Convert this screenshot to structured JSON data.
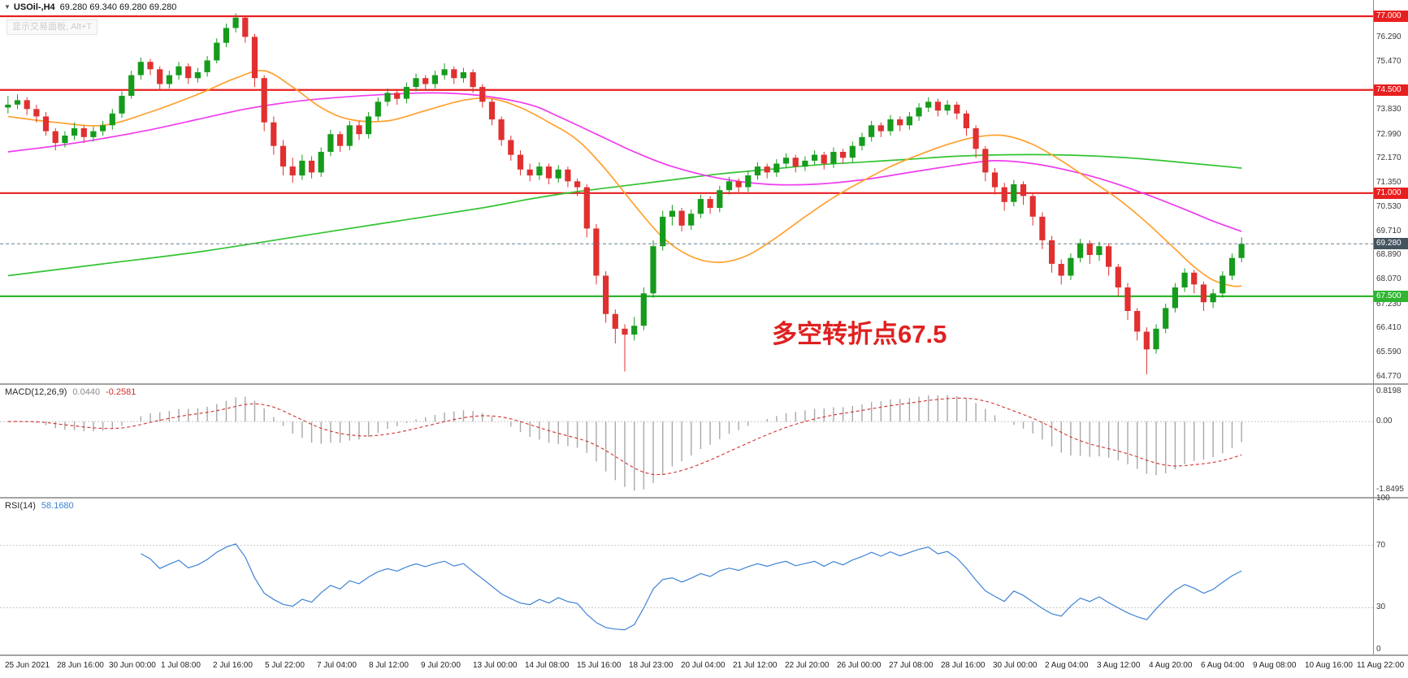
{
  "header": {
    "symbol_dropdown_icon": "▼",
    "title": "USOil-,H4",
    "ohlc": "69.280 69.340 69.280 69.280",
    "trade_panel_hint": "显示交易面板, Alt+T"
  },
  "colors": {
    "up": "#169b1d",
    "down": "#e03030",
    "macd_hist": "#a8a8a8",
    "macd_signal": "#d23030",
    "rsi_line": "#3e83d6",
    "current_price_line": "#6b7f8a",
    "annotation": "#e02020",
    "level_dotted": "#c8c8c8"
  },
  "chart_data": {
    "type": "candlestick",
    "symbol": "USOil-",
    "timeframe": "H4",
    "ohlc_display": {
      "open": "69.280",
      "high": "69.340",
      "low": "69.280",
      "close": "69.280"
    },
    "price_axis": {
      "min": 64.55,
      "max": 77.55,
      "plain_labels": [
        "76.290",
        "75.470",
        "73.830",
        "72.990",
        "72.170",
        "71.350",
        "70.530",
        "69.710",
        "68.890",
        "68.070",
        "67.230",
        "66.410",
        "65.590",
        "64.770"
      ]
    },
    "special_price_labels": [
      {
        "text": "77.000",
        "value": 77.0,
        "bg": "#e81f1f"
      },
      {
        "text": "74.500",
        "value": 74.5,
        "bg": "#e81f1f"
      },
      {
        "text": "71.000",
        "value": 71.0,
        "bg": "#e81f1f"
      },
      {
        "text": "69.280",
        "value": 69.28,
        "bg": "#43545f"
      },
      {
        "text": "67.500",
        "value": 67.5,
        "bg": "#2fb52f"
      }
    ],
    "hlines": [
      {
        "label": "77.000",
        "value": 77.0,
        "color": "#e81f1f"
      },
      {
        "label": "74.500",
        "value": 74.5,
        "color": "#e81f1f"
      },
      {
        "label": "71.000",
        "value": 71.0,
        "color": "#e81f1f"
      },
      {
        "label": "67.500",
        "value": 67.5,
        "color": "#2fb52f"
      }
    ],
    "current_price": {
      "value": 69.28,
      "label": "69.280"
    },
    "annotation": {
      "text": "多空转折点67.5"
    },
    "moving_averages": [
      {
        "name": "ma-slow-green",
        "color": "#33c433",
        "points": [
          [
            0,
            68.2
          ],
          [
            10,
            68.6
          ],
          [
            20,
            69.0
          ],
          [
            30,
            69.5
          ],
          [
            40,
            70.0
          ],
          [
            50,
            70.5
          ],
          [
            55,
            70.8
          ],
          [
            60,
            71.05
          ],
          [
            65,
            71.25
          ],
          [
            70,
            71.45
          ],
          [
            75,
            71.65
          ],
          [
            80,
            71.8
          ],
          [
            85,
            71.95
          ],
          [
            90,
            72.05
          ],
          [
            95,
            72.15
          ],
          [
            100,
            72.25
          ],
          [
            105,
            72.3
          ],
          [
            110,
            72.3
          ],
          [
            115,
            72.25
          ],
          [
            120,
            72.15
          ],
          [
            125,
            72.0
          ],
          [
            130,
            71.85
          ]
        ]
      },
      {
        "name": "ma-medium-magenta",
        "color": "#ef3cef",
        "points": [
          [
            0,
            72.4
          ],
          [
            5,
            72.6
          ],
          [
            10,
            72.85
          ],
          [
            15,
            73.15
          ],
          [
            20,
            73.5
          ],
          [
            25,
            73.85
          ],
          [
            30,
            74.1
          ],
          [
            35,
            74.25
          ],
          [
            40,
            74.35
          ],
          [
            45,
            74.4
          ],
          [
            50,
            74.3
          ],
          [
            55,
            74.0
          ],
          [
            58,
            73.6
          ],
          [
            62,
            73.0
          ],
          [
            66,
            72.4
          ],
          [
            70,
            71.9
          ],
          [
            75,
            71.5
          ],
          [
            80,
            71.3
          ],
          [
            85,
            71.3
          ],
          [
            90,
            71.45
          ],
          [
            95,
            71.7
          ],
          [
            100,
            71.95
          ],
          [
            104,
            72.1
          ],
          [
            108,
            72.0
          ],
          [
            112,
            71.75
          ],
          [
            116,
            71.4
          ],
          [
            120,
            70.95
          ],
          [
            124,
            70.45
          ],
          [
            127,
            70.05
          ],
          [
            130,
            69.7
          ]
        ]
      },
      {
        "name": "ma-fast-orange",
        "color": "#ffa02e",
        "points": [
          [
            0,
            73.6
          ],
          [
            5,
            73.4
          ],
          [
            10,
            73.3
          ],
          [
            15,
            73.75
          ],
          [
            20,
            74.35
          ],
          [
            24,
            74.9
          ],
          [
            27,
            75.15
          ],
          [
            30,
            74.6
          ],
          [
            33,
            73.9
          ],
          [
            36,
            73.5
          ],
          [
            40,
            73.45
          ],
          [
            44,
            73.8
          ],
          [
            48,
            74.15
          ],
          [
            51,
            74.2
          ],
          [
            54,
            73.9
          ],
          [
            57,
            73.4
          ],
          [
            60,
            72.8
          ],
          [
            63,
            71.8
          ],
          [
            66,
            70.6
          ],
          [
            69,
            69.5
          ],
          [
            72,
            68.85
          ],
          [
            75,
            68.65
          ],
          [
            78,
            68.9
          ],
          [
            81,
            69.5
          ],
          [
            84,
            70.2
          ],
          [
            87,
            70.85
          ],
          [
            90,
            71.4
          ],
          [
            93,
            71.9
          ],
          [
            96,
            72.3
          ],
          [
            99,
            72.65
          ],
          [
            102,
            72.9
          ],
          [
            105,
            72.95
          ],
          [
            108,
            72.65
          ],
          [
            111,
            72.1
          ],
          [
            114,
            71.45
          ],
          [
            117,
            70.8
          ],
          [
            120,
            70.0
          ],
          [
            123,
            69.1
          ],
          [
            125,
            68.5
          ],
          [
            127,
            68.05
          ],
          [
            129,
            67.85
          ],
          [
            130,
            67.85
          ]
        ]
      }
    ],
    "candles": [
      [
        73.9,
        74.3,
        73.7,
        74.0
      ],
      [
        74.0,
        74.35,
        73.85,
        74.15
      ],
      [
        74.15,
        74.25,
        73.65,
        73.85
      ],
      [
        73.85,
        74.0,
        73.4,
        73.6
      ],
      [
        73.6,
        73.75,
        72.95,
        73.1
      ],
      [
        73.1,
        73.2,
        72.45,
        72.7
      ],
      [
        72.7,
        73.1,
        72.55,
        72.95
      ],
      [
        72.95,
        73.4,
        72.8,
        73.2
      ],
      [
        73.2,
        73.3,
        72.7,
        72.9
      ],
      [
        72.9,
        73.25,
        72.75,
        73.1
      ],
      [
        73.1,
        73.45,
        72.95,
        73.3
      ],
      [
        73.3,
        73.85,
        73.15,
        73.7
      ],
      [
        73.7,
        74.45,
        73.55,
        74.3
      ],
      [
        74.3,
        75.15,
        74.2,
        75.0
      ],
      [
        75.0,
        75.6,
        74.85,
        75.45
      ],
      [
        75.45,
        75.55,
        75.0,
        75.2
      ],
      [
        75.2,
        75.3,
        74.5,
        74.7
      ],
      [
        74.7,
        75.15,
        74.55,
        75.0
      ],
      [
        75.0,
        75.45,
        74.85,
        75.3
      ],
      [
        75.3,
        75.4,
        74.7,
        74.9
      ],
      [
        74.9,
        75.25,
        74.75,
        75.1
      ],
      [
        75.1,
        75.65,
        74.95,
        75.5
      ],
      [
        75.5,
        76.25,
        75.4,
        76.1
      ],
      [
        76.1,
        76.75,
        75.95,
        76.6
      ],
      [
        76.6,
        77.1,
        76.45,
        76.95
      ],
      [
        76.95,
        77.0,
        76.1,
        76.3
      ],
      [
        76.3,
        76.4,
        74.6,
        74.9
      ],
      [
        74.9,
        75.0,
        73.1,
        73.4
      ],
      [
        73.4,
        73.6,
        72.3,
        72.6
      ],
      [
        72.6,
        72.8,
        71.6,
        71.9
      ],
      [
        71.9,
        72.2,
        71.35,
        71.6
      ],
      [
        71.6,
        72.3,
        71.45,
        72.1
      ],
      [
        72.1,
        72.25,
        71.5,
        71.7
      ],
      [
        71.7,
        72.55,
        71.55,
        72.4
      ],
      [
        72.4,
        73.15,
        72.25,
        73.0
      ],
      [
        73.0,
        73.1,
        72.4,
        72.6
      ],
      [
        72.6,
        73.45,
        72.45,
        73.3
      ],
      [
        73.3,
        73.45,
        72.8,
        73.0
      ],
      [
        73.0,
        73.75,
        72.85,
        73.6
      ],
      [
        73.6,
        74.25,
        73.45,
        74.1
      ],
      [
        74.1,
        74.55,
        73.95,
        74.4
      ],
      [
        74.4,
        74.5,
        74.0,
        74.2
      ],
      [
        74.2,
        74.75,
        74.05,
        74.6
      ],
      [
        74.6,
        75.05,
        74.45,
        74.9
      ],
      [
        74.9,
        75.0,
        74.5,
        74.7
      ],
      [
        74.7,
        75.15,
        74.55,
        75.0
      ],
      [
        75.0,
        75.4,
        74.85,
        75.2
      ],
      [
        75.2,
        75.3,
        74.7,
        74.9
      ],
      [
        74.9,
        75.25,
        74.75,
        75.1
      ],
      [
        75.1,
        75.2,
        74.4,
        74.6
      ],
      [
        74.6,
        74.7,
        73.9,
        74.1
      ],
      [
        74.1,
        74.2,
        73.3,
        73.5
      ],
      [
        73.5,
        73.6,
        72.6,
        72.8
      ],
      [
        72.8,
        72.95,
        72.1,
        72.3
      ],
      [
        72.3,
        72.45,
        71.6,
        71.8
      ],
      [
        71.8,
        72.0,
        71.4,
        71.6
      ],
      [
        71.6,
        72.05,
        71.45,
        71.9
      ],
      [
        71.9,
        72.0,
        71.3,
        71.5
      ],
      [
        71.5,
        71.95,
        71.35,
        71.8
      ],
      [
        71.8,
        71.9,
        71.2,
        71.4
      ],
      [
        71.4,
        71.5,
        70.9,
        71.2
      ],
      [
        71.2,
        71.3,
        69.5,
        69.8
      ],
      [
        69.8,
        69.95,
        67.9,
        68.2
      ],
      [
        68.2,
        68.35,
        66.6,
        66.9
      ],
      [
        66.9,
        67.05,
        65.9,
        66.4
      ],
      [
        66.4,
        66.55,
        64.95,
        66.2
      ],
      [
        66.2,
        66.8,
        66.0,
        66.5
      ],
      [
        66.5,
        67.8,
        66.35,
        67.6
      ],
      [
        67.6,
        69.4,
        67.45,
        69.2
      ],
      [
        69.2,
        70.4,
        69.05,
        70.2
      ],
      [
        70.2,
        70.6,
        69.9,
        70.4
      ],
      [
        70.4,
        70.5,
        69.7,
        69.9
      ],
      [
        69.9,
        70.45,
        69.75,
        70.3
      ],
      [
        70.3,
        70.95,
        70.15,
        70.8
      ],
      [
        70.8,
        70.9,
        70.3,
        70.5
      ],
      [
        70.5,
        71.25,
        70.35,
        71.1
      ],
      [
        71.1,
        71.55,
        70.95,
        71.4
      ],
      [
        71.4,
        71.5,
        71.0,
        71.2
      ],
      [
        71.2,
        71.75,
        71.05,
        71.6
      ],
      [
        71.6,
        72.05,
        71.45,
        71.9
      ],
      [
        71.9,
        72.0,
        71.5,
        71.7
      ],
      [
        71.7,
        72.15,
        71.55,
        72.0
      ],
      [
        72.0,
        72.35,
        71.85,
        72.2
      ],
      [
        72.2,
        72.3,
        71.7,
        71.9
      ],
      [
        71.9,
        72.25,
        71.75,
        72.1
      ],
      [
        72.1,
        72.45,
        71.95,
        72.3
      ],
      [
        72.3,
        72.4,
        71.8,
        72.0
      ],
      [
        72.0,
        72.55,
        71.85,
        72.4
      ],
      [
        72.4,
        72.5,
        72.0,
        72.2
      ],
      [
        72.2,
        72.75,
        72.05,
        72.6
      ],
      [
        72.6,
        73.05,
        72.45,
        72.9
      ],
      [
        72.9,
        73.45,
        72.75,
        73.3
      ],
      [
        73.3,
        73.4,
        72.9,
        73.1
      ],
      [
        73.1,
        73.65,
        72.95,
        73.5
      ],
      [
        73.5,
        73.6,
        73.1,
        73.3
      ],
      [
        73.3,
        73.75,
        73.15,
        73.6
      ],
      [
        73.6,
        74.05,
        73.45,
        73.9
      ],
      [
        73.9,
        74.25,
        73.75,
        74.1
      ],
      [
        74.1,
        74.2,
        73.6,
        73.8
      ],
      [
        73.8,
        74.15,
        73.65,
        74.0
      ],
      [
        74.0,
        74.1,
        73.5,
        73.7
      ],
      [
        73.7,
        73.8,
        72.95,
        73.2
      ],
      [
        73.2,
        73.3,
        72.2,
        72.5
      ],
      [
        72.5,
        72.6,
        71.4,
        71.7
      ],
      [
        71.7,
        71.85,
        70.95,
        71.2
      ],
      [
        71.2,
        71.35,
        70.4,
        70.7
      ],
      [
        70.7,
        71.45,
        70.55,
        71.3
      ],
      [
        71.3,
        71.4,
        70.6,
        70.9
      ],
      [
        70.9,
        71.0,
        69.9,
        70.2
      ],
      [
        70.2,
        70.35,
        69.1,
        69.4
      ],
      [
        69.4,
        69.55,
        68.3,
        68.6
      ],
      [
        68.6,
        68.75,
        67.9,
        68.2
      ],
      [
        68.2,
        68.95,
        68.05,
        68.8
      ],
      [
        68.8,
        69.45,
        68.65,
        69.3
      ],
      [
        69.3,
        69.4,
        68.6,
        68.9
      ],
      [
        68.9,
        69.35,
        68.7,
        69.2
      ],
      [
        69.2,
        69.3,
        68.2,
        68.5
      ],
      [
        68.5,
        68.6,
        67.5,
        67.8
      ],
      [
        67.8,
        67.95,
        66.7,
        67.0
      ],
      [
        67.0,
        67.1,
        66.0,
        66.3
      ],
      [
        66.3,
        66.45,
        64.85,
        65.7
      ],
      [
        65.7,
        66.55,
        65.55,
        66.4
      ],
      [
        66.4,
        67.25,
        66.25,
        67.1
      ],
      [
        67.1,
        67.95,
        66.95,
        67.8
      ],
      [
        67.8,
        68.45,
        67.65,
        68.3
      ],
      [
        68.3,
        68.4,
        67.6,
        67.9
      ],
      [
        67.9,
        68.0,
        67.0,
        67.3
      ],
      [
        67.3,
        67.75,
        67.1,
        67.6
      ],
      [
        67.6,
        68.35,
        67.45,
        68.2
      ],
      [
        68.2,
        68.95,
        68.05,
        68.8
      ],
      [
        68.8,
        69.5,
        68.65,
        69.28
      ]
    ],
    "macd": {
      "label": "MACD(12,26,9)",
      "main_value": "0.0440",
      "signal_value": "-0.2581",
      "params": {
        "fast": 12,
        "slow": 26,
        "signal": 9
      },
      "axis_labels": [
        "0.8198",
        "0.00",
        "-1.8495"
      ],
      "range": [
        -2.05,
        1.0
      ]
    },
    "rsi": {
      "label": "RSI(14)",
      "value": "58.1680",
      "period": 14,
      "levels": [
        70,
        30
      ],
      "axis_labels": [
        "100",
        "70",
        "30",
        "0"
      ]
    },
    "time_labels": [
      "25 Jun 2021",
      "28 Jun 16:00",
      "30 Jun 00:00",
      "1 Jul 08:00",
      "2 Jul 16:00",
      "5 Jul 22:00",
      "7 Jul 04:00",
      "8 Jul 12:00",
      "9 Jul 20:00",
      "13 Jul 00:00",
      "14 Jul 08:00",
      "15 Jul 16:00",
      "18 Jul 23:00",
      "20 Jul 04:00",
      "21 Jul 12:00",
      "22 Jul 20:00",
      "26 Jul 00:00",
      "27 Jul 08:00",
      "28 Jul 16:00",
      "30 Jul 00:00",
      "2 Aug 04:00",
      "3 Aug 12:00",
      "4 Aug 20:00",
      "6 Aug 04:00",
      "9 Aug 08:00",
      "10 Aug 16:00",
      "11 Aug 22:00"
    ]
  }
}
